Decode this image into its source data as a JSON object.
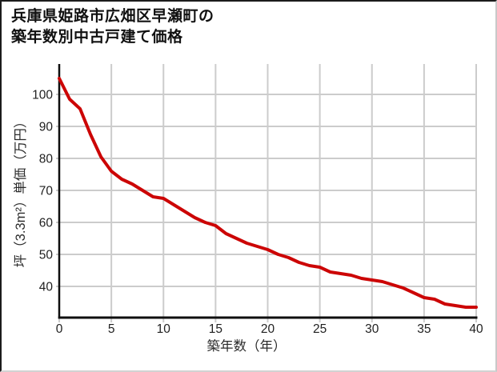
{
  "title": {
    "line1": "兵庫県姫路市広畑区早瀬町の",
    "line2": "築年数別中古戸建て価格"
  },
  "chart_data": {
    "type": "line",
    "title": "兵庫県姫路市広畑区早瀬町の築年数別中古戸建て価格",
    "xlabel": "築年数（年）",
    "ylabel": "坪（3.3m²）単価（万円）",
    "x": [
      0,
      1,
      2,
      3,
      4,
      5,
      6,
      7,
      8,
      9,
      10,
      11,
      12,
      13,
      14,
      15,
      16,
      17,
      18,
      19,
      20,
      21,
      22,
      23,
      24,
      25,
      26,
      27,
      28,
      29,
      30,
      31,
      32,
      33,
      34,
      35,
      36,
      37,
      38,
      39,
      40
    ],
    "values": [
      105,
      98.5,
      95.5,
      87.5,
      80.5,
      76,
      73.5,
      72,
      70,
      68,
      67.5,
      65.5,
      63.5,
      61.5,
      60,
      59,
      56.5,
      55,
      53.5,
      52.5,
      51.5,
      50,
      49,
      47.5,
      46.5,
      46,
      44.5,
      44,
      43.5,
      42.5,
      42,
      41.5,
      40.5,
      39.5,
      38,
      36.5,
      36,
      34.5,
      34,
      33.5,
      33.5
    ],
    "xticks": [
      0,
      5,
      10,
      15,
      20,
      25,
      30,
      35,
      40
    ],
    "yticks": [
      40,
      50,
      60,
      70,
      80,
      90,
      100
    ],
    "xlim": [
      0,
      40
    ],
    "ylim": [
      30,
      109.5
    ],
    "grid": true,
    "legend_position": "none",
    "line_color": "#cc0505",
    "grid_color": "#cccccc",
    "axis_color": "#0f0f0f",
    "tick_label_color": "#1f1f1f"
  }
}
